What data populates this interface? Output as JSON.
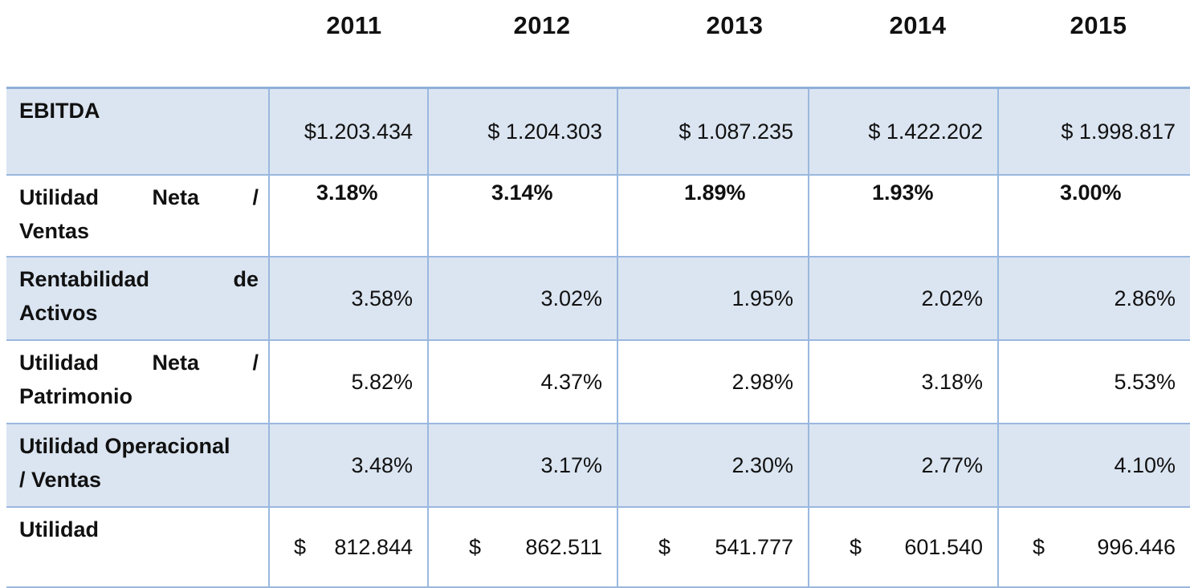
{
  "years": [
    "2011",
    "2012",
    "2013",
    "2014",
    "2015"
  ],
  "rows": [
    {
      "label_lines": [
        "EBITDA"
      ],
      "values": [
        "$1.203.434",
        "$ 1.204.303",
        "$ 1.087.235",
        "$ 1.422.202",
        "$ 1.998.817"
      ]
    },
    {
      "label_lines": [
        [
          "Utilidad",
          "Neta",
          "/"
        ],
        "Ventas"
      ],
      "values": [
        "3.18%",
        "3.14%",
        "1.89%",
        "1.93%",
        "3.00%"
      ]
    },
    {
      "label_lines": [
        [
          "Rentabilidad",
          "de"
        ],
        "Activos"
      ],
      "values": [
        "3.58%",
        "3.02%",
        "1.95%",
        "2.02%",
        "2.86%"
      ]
    },
    {
      "label_lines": [
        [
          "Utilidad",
          "Neta",
          "/"
        ],
        "Patrimonio"
      ],
      "values": [
        "5.82%",
        "4.37%",
        "2.98%",
        "3.18%",
        "5.53%"
      ]
    },
    {
      "label_lines": [
        "Utilidad Operacional",
        "/ Ventas"
      ],
      "values": [
        "3.48%",
        "3.17%",
        "2.30%",
        "2.77%",
        "4.10%"
      ]
    },
    {
      "label_lines": [
        "Utilidad"
      ],
      "currency_symbol": "$",
      "values": [
        "812.844",
        "862.511",
        "541.777",
        "601.540",
        "996.446"
      ]
    }
  ],
  "colors": {
    "shade": "#dbe5f1",
    "border": "#9ab8df"
  }
}
